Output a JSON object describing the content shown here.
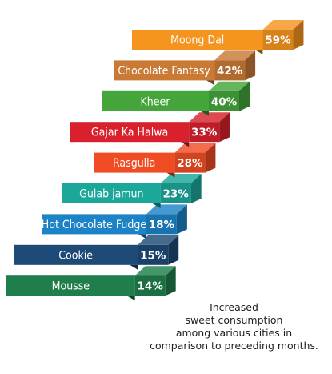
{
  "chart_data": {
    "type": "bar",
    "orientation": "horizontal",
    "categories": [
      "Moong Dal",
      "Chocolate Fantasy",
      "Kheer",
      "Gajar Ka Halwa",
      "Rasgulla",
      "Gulab jamun",
      "Hot Chocolate Fudge",
      "Cookie",
      "Mousse"
    ],
    "values": [
      59,
      42,
      40,
      33,
      28,
      23,
      18,
      15,
      14
    ],
    "value_labels": [
      "59%",
      "42%",
      "40%",
      "33%",
      "28%",
      "23%",
      "18%",
      "15%",
      "14%"
    ],
    "colors": [
      "#F5941E",
      "#C97A35",
      "#43A53A",
      "#D8212C",
      "#F04C23",
      "#1BA79A",
      "#1C83C6",
      "#1E4A77",
      "#1F7E4B"
    ],
    "grid": false,
    "legend": "none"
  },
  "caption": {
    "line1": "Increased",
    "line2": "sweet consumption",
    "line3": "among various cities in",
    "line4": "comparison to preceding months."
  }
}
